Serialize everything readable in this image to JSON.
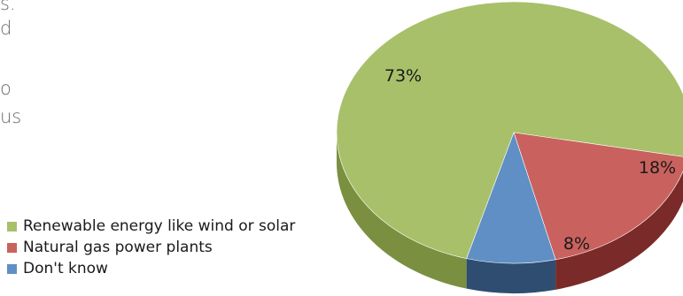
{
  "text_fragments": [
    "s.",
    "d",
    "o",
    "us"
  ],
  "chart_data": {
    "type": "pie",
    "title": "",
    "slices": [
      {
        "name": "Renewable energy like wind or solar",
        "value": 73,
        "label": "73%",
        "color": "#a8c06a",
        "side_color": "#7a9040"
      },
      {
        "name": "Natural gas power plants",
        "value": 18,
        "label": "18%",
        "color": "#c9625e",
        "side_color": "#7a2a28"
      },
      {
        "name": "Don't know",
        "value": 8,
        "label": "8%",
        "color": "#5f8fc4",
        "side_color": "#2f4d70"
      }
    ],
    "legend_position": "left"
  }
}
